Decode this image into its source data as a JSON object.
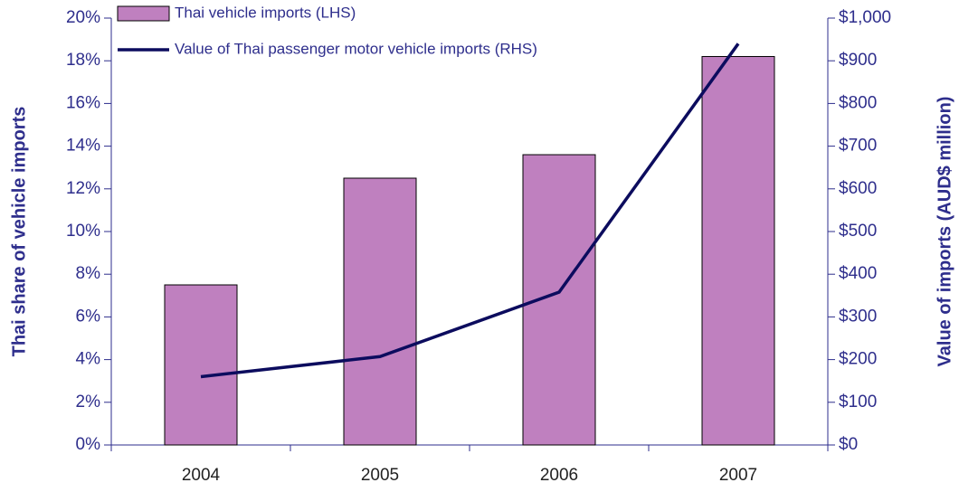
{
  "chart_data": {
    "type": "bar-line",
    "categories": [
      "2004",
      "2005",
      "2006",
      "2007"
    ],
    "series": [
      {
        "name": "Thai vehicle imports (LHS)",
        "type": "bar",
        "color": "#bf80bf",
        "values": [
          7.5,
          12.5,
          13.6,
          18.2
        ]
      },
      {
        "name": "Value of Thai passenger motor vehicle imports (RHS)",
        "type": "line",
        "axis": "y2",
        "color": "#0c0c5e",
        "values": [
          160,
          207,
          358,
          940
        ]
      }
    ],
    "ylabel": "Thai share of vehicle imports",
    "y2label": "Value of imports (AUD$ million)",
    "ylim": [
      0,
      20
    ],
    "yticks": [
      {
        "value": 0,
        "label": "0%"
      },
      {
        "value": 2,
        "label": "2%"
      },
      {
        "value": 4,
        "label": "4%"
      },
      {
        "value": 6,
        "label": "6%"
      },
      {
        "value": 8,
        "label": "8%"
      },
      {
        "value": 10,
        "label": "10%"
      },
      {
        "value": 12,
        "label": "12%"
      },
      {
        "value": 14,
        "label": "14%"
      },
      {
        "value": 16,
        "label": "16%"
      },
      {
        "value": 18,
        "label": "18%"
      },
      {
        "value": 20,
        "label": "20%"
      }
    ],
    "y2lim": [
      0,
      1000
    ],
    "y2ticks": [
      {
        "value": 0,
        "label": "$0"
      },
      {
        "value": 100,
        "label": "$100"
      },
      {
        "value": 200,
        "label": "$200"
      },
      {
        "value": 300,
        "label": "$300"
      },
      {
        "value": 400,
        "label": "$400"
      },
      {
        "value": 500,
        "label": "$500"
      },
      {
        "value": 600,
        "label": "$600"
      },
      {
        "value": 700,
        "label": "$700"
      },
      {
        "value": 800,
        "label": "$800"
      },
      {
        "value": 900,
        "label": "$900"
      },
      {
        "value": 1000,
        "label": "$1,000"
      }
    ],
    "legend": "top"
  }
}
